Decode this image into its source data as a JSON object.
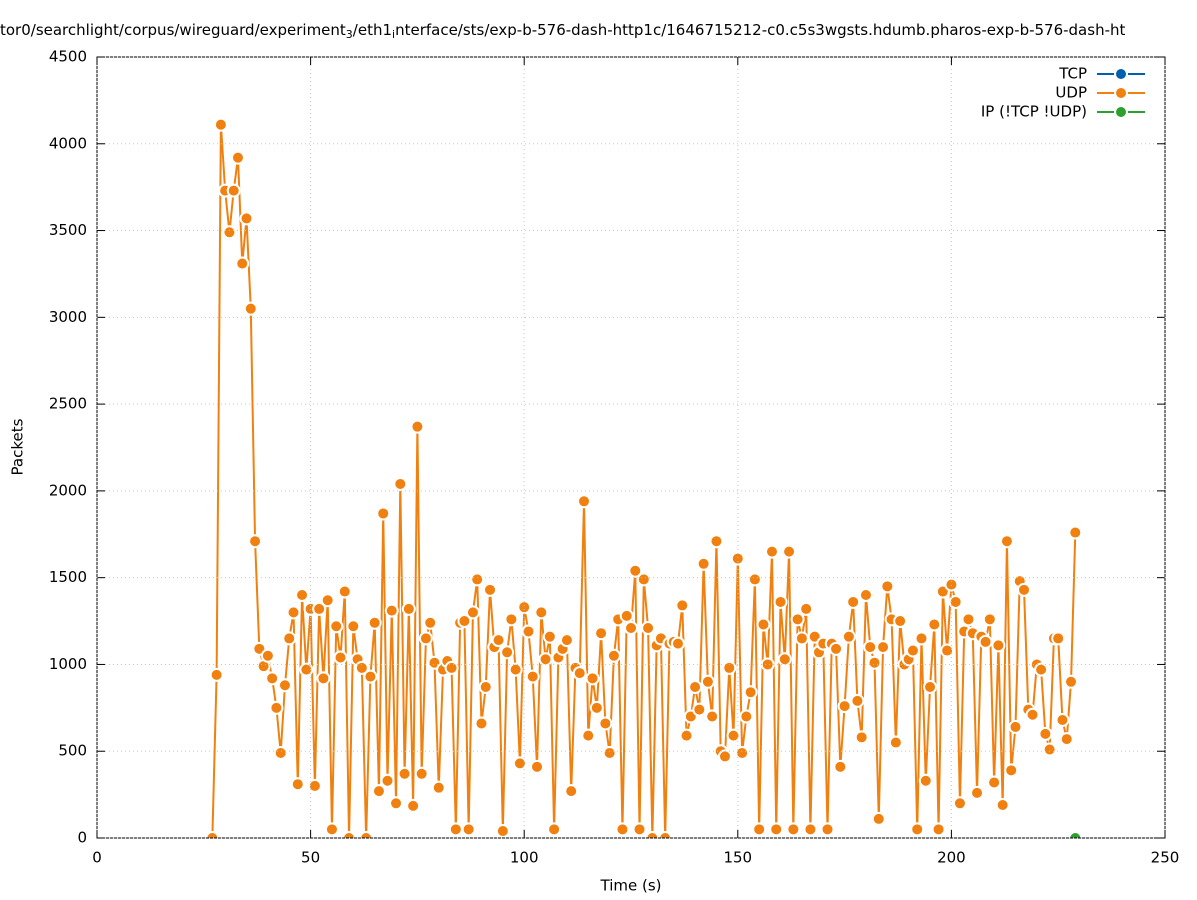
{
  "chart_data": {
    "type": "line",
    "title_segments": [
      "tor0/searchlight/corpus/wireguard/experiment",
      "3",
      "/eth1",
      "i",
      "nterface/sts/exp-b-576-dash-http1c/1646715212-c0.c5s3wgsts.hdumb.pharos-exp-b-576-dash-ht"
    ],
    "xlabel": "Time (s)",
    "ylabel": "Packets",
    "xlim": [
      0,
      250
    ],
    "xticks": [
      0,
      50,
      100,
      150,
      200,
      250
    ],
    "ylim": [
      0,
      4500
    ],
    "yticks": [
      0,
      500,
      1000,
      1500,
      2000,
      2500,
      3000,
      3500,
      4000,
      4500
    ],
    "grid": true,
    "legend": "top-right",
    "series": [
      {
        "name": "TCP",
        "color": "#0060ad",
        "x": [],
        "values": []
      },
      {
        "name": "UDP",
        "color": "#f0800f",
        "x": [
          27,
          28,
          29,
          30,
          31,
          32,
          33,
          34,
          35,
          36,
          37,
          38,
          39,
          40,
          41,
          42,
          43,
          44,
          45,
          46,
          47,
          48,
          49,
          50,
          51,
          52,
          53,
          54,
          55,
          56,
          57,
          58,
          59,
          60,
          61,
          62,
          63,
          64,
          65,
          66,
          67,
          68,
          69,
          70,
          71,
          72,
          73,
          74,
          75,
          76,
          77,
          78,
          79,
          80,
          81,
          82,
          83,
          84,
          85,
          86,
          87,
          88,
          89,
          90,
          91,
          92,
          93,
          94,
          95,
          96,
          97,
          98,
          99,
          100,
          101,
          102,
          103,
          104,
          105,
          106,
          107,
          108,
          109,
          110,
          111,
          112,
          113,
          114,
          115,
          116,
          117,
          118,
          119,
          120,
          121,
          122,
          123,
          124,
          125,
          126,
          127,
          128,
          129,
          130,
          131,
          132,
          133,
          134,
          135,
          136,
          137,
          138,
          139,
          140,
          141,
          142,
          143,
          144,
          145,
          146,
          147,
          148,
          149,
          150,
          151,
          152,
          153,
          154,
          155,
          156,
          157,
          158,
          159,
          160,
          161,
          162,
          163,
          164,
          165,
          166,
          167,
          168,
          169,
          170,
          171,
          172,
          173,
          174,
          175,
          176,
          177,
          178,
          179,
          180,
          181,
          182,
          183,
          184,
          185,
          186,
          187,
          188,
          189,
          190,
          191,
          192,
          193,
          194,
          195,
          196,
          197,
          198,
          199,
          200,
          201,
          202,
          203,
          204,
          205,
          206,
          207,
          208,
          209,
          210,
          211,
          212,
          213,
          214,
          215,
          216,
          217,
          218,
          219,
          220,
          221,
          222,
          223,
          224,
          225,
          226,
          227,
          228,
          229
        ],
        "values": [
          0,
          940,
          4110,
          3730,
          3490,
          3730,
          3920,
          3310,
          3570,
          3050,
          1710,
          1090,
          990,
          1050,
          920,
          750,
          490,
          880,
          1150,
          1300,
          310,
          1400,
          970,
          1320,
          300,
          1320,
          920,
          1370,
          50,
          1220,
          1040,
          1420,
          0,
          1220,
          1030,
          980,
          0,
          930,
          1240,
          270,
          1870,
          330,
          1310,
          200,
          2040,
          370,
          1320,
          185,
          2370,
          370,
          1150,
          1240,
          1010,
          290,
          970,
          1020,
          980,
          50,
          1240,
          1250,
          50,
          1300,
          1490,
          660,
          870,
          1430,
          1100,
          1140,
          40,
          1070,
          1260,
          970,
          430,
          1330,
          1190,
          930,
          410,
          1300,
          1030,
          1160,
          50,
          1040,
          1090,
          1140,
          270,
          980,
          950,
          1940,
          590,
          920,
          750,
          1180,
          660,
          490,
          1050,
          1260,
          50,
          1280,
          1210,
          1540,
          50,
          1490,
          1210,
          0,
          1110,
          1150,
          0,
          1120,
          1130,
          1120,
          1340,
          590,
          700,
          870,
          740,
          1580,
          900,
          700,
          1710,
          500,
          470,
          980,
          590,
          1610,
          490,
          700,
          840,
          1490,
          50,
          1230,
          1000,
          1650,
          50,
          1360,
          1030,
          1650,
          50,
          1260,
          1150,
          1320,
          50,
          1160,
          1070,
          1120,
          50,
          1120,
          1090,
          410,
          760,
          1160,
          1360,
          790,
          580,
          1400,
          1100,
          1010,
          110,
          1100,
          1450,
          1260,
          550,
          1250,
          1000,
          1030,
          1080,
          50,
          1150,
          330,
          870,
          1230,
          50,
          1420,
          1080,
          1460,
          1360,
          200,
          1190,
          1260,
          1180,
          260,
          1160,
          1130,
          1260,
          320,
          1110,
          190,
          1710,
          390,
          640,
          1480,
          1430,
          740,
          710,
          1000,
          970,
          600,
          510,
          1150,
          1150,
          680,
          570,
          900,
          1760
        ]
      },
      {
        "name": "IP (!TCP  !UDP)",
        "color": "#2ca02c",
        "x": [
          229
        ],
        "values": [
          0
        ]
      }
    ]
  }
}
